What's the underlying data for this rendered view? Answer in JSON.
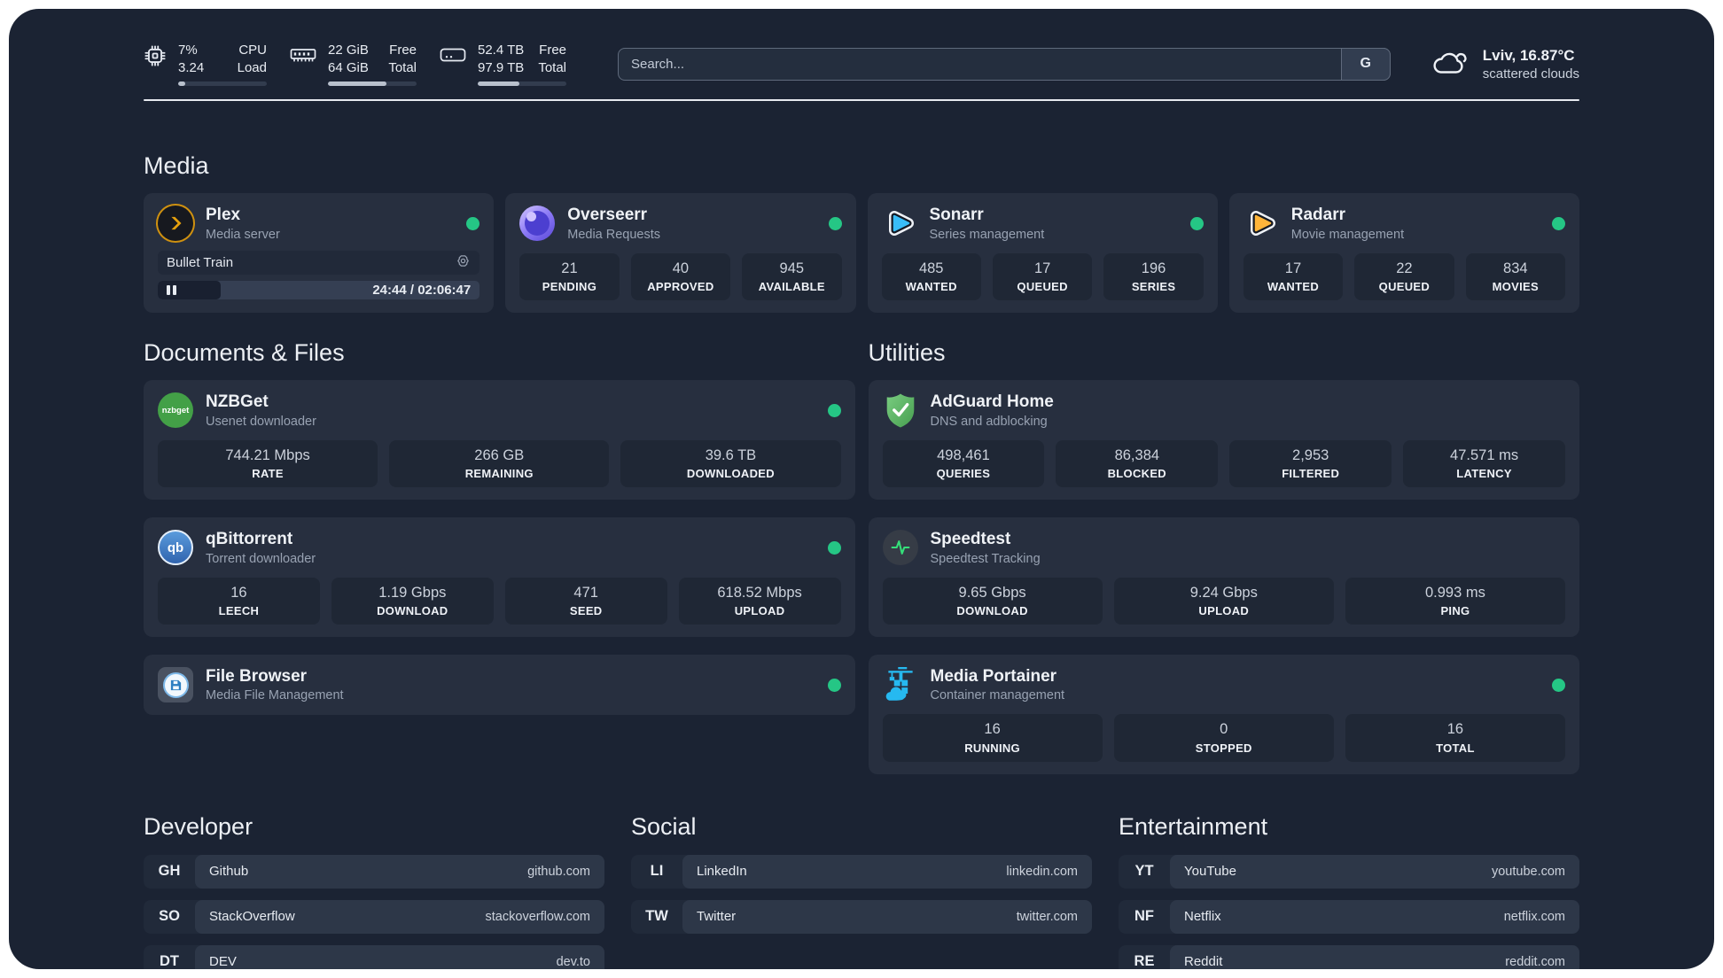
{
  "topbar": {
    "cpu": {
      "value_line1": "7%",
      "value_line2": "3.24",
      "label_line1": "CPU",
      "label_line2": "Load",
      "progress_pct": 8
    },
    "memory": {
      "value_line1": "22 GiB",
      "value_line2": "64 GiB",
      "label_line1": "Free",
      "label_line2": "Total",
      "progress_pct": 66
    },
    "storage": {
      "value_line1": "52.4 TB",
      "value_line2": "97.9 TB",
      "label_line1": "Free",
      "label_line2": "Total",
      "progress_pct": 47
    },
    "search": {
      "placeholder": "Search...",
      "engine_button": "G"
    },
    "weather": {
      "location": "Lviv, 16.87°C",
      "condition": "scattered clouds"
    }
  },
  "colors": {
    "status_online": "#25c685",
    "plex_accent": "#e5a00d",
    "sonarr_accent": "#39bdf8",
    "radarr_accent": "#ffb53a",
    "adguard_green": "#57b25f",
    "portainer_blue": "#26b9f0",
    "speedtest_pulse": "#35e07a"
  },
  "icons": {
    "cpu": "cpu-chip",
    "memory": "ram-stick",
    "storage": "hard-drive",
    "weather": "clouds",
    "plex": "plex-chevron",
    "overseerr": "overseerr-eye",
    "sonarr": "play-triangle-blue",
    "radarr": "play-triangle-orange",
    "nzbget": "nzbget-circle",
    "qbittorrent": "qb-circle",
    "filebrowser": "floppy-disk",
    "adguard": "shield-check",
    "speedtest": "pulse-line",
    "portainer": "container-crane",
    "stream_settings": "webcam",
    "stream_state": "pause"
  },
  "sections": {
    "media": {
      "title": "Media",
      "plex": {
        "name": "Plex",
        "subtitle": "Media server",
        "online": true,
        "stream": {
          "title": "Bullet Train",
          "time": "24:44 / 02:06:47",
          "progress_pct": 19.5
        }
      },
      "overseerr": {
        "name": "Overseerr",
        "subtitle": "Media Requests",
        "online": true,
        "stats": [
          {
            "value": "21",
            "label": "PENDING"
          },
          {
            "value": "40",
            "label": "APPROVED"
          },
          {
            "value": "945",
            "label": "AVAILABLE"
          }
        ]
      },
      "sonarr": {
        "name": "Sonarr",
        "subtitle": "Series management",
        "online": true,
        "stats": [
          {
            "value": "485",
            "label": "WANTED"
          },
          {
            "value": "17",
            "label": "QUEUED"
          },
          {
            "value": "196",
            "label": "SERIES"
          }
        ]
      },
      "radarr": {
        "name": "Radarr",
        "subtitle": "Movie management",
        "online": true,
        "stats": [
          {
            "value": "17",
            "label": "WANTED"
          },
          {
            "value": "22",
            "label": "QUEUED"
          },
          {
            "value": "834",
            "label": "MOVIES"
          }
        ]
      }
    },
    "documents": {
      "title": "Documents & Files",
      "nzbget": {
        "name": "NZBGet",
        "subtitle": "Usenet downloader",
        "online": true,
        "icon_text": "nzbget",
        "stats": [
          {
            "value": "744.21 Mbps",
            "label": "RATE"
          },
          {
            "value": "266 GB",
            "label": "REMAINING"
          },
          {
            "value": "39.6 TB",
            "label": "DOWNLOADED"
          }
        ]
      },
      "qbittorrent": {
        "name": "qBittorrent",
        "subtitle": "Torrent downloader",
        "online": true,
        "icon_text": "qb",
        "stats": [
          {
            "value": "16",
            "label": "LEECH"
          },
          {
            "value": "1.19 Gbps",
            "label": "DOWNLOAD"
          },
          {
            "value": "471",
            "label": "SEED"
          },
          {
            "value": "618.52 Mbps",
            "label": "UPLOAD"
          }
        ]
      },
      "filebrowser": {
        "name": "File Browser",
        "subtitle": "Media File Management",
        "online": true
      }
    },
    "utilities": {
      "title": "Utilities",
      "adguard": {
        "name": "AdGuard Home",
        "subtitle": "DNS and adblocking",
        "stats": [
          {
            "value": "498,461",
            "label": "QUERIES"
          },
          {
            "value": "86,384",
            "label": "BLOCKED"
          },
          {
            "value": "2,953",
            "label": "FILTERED"
          },
          {
            "value": "47.571 ms",
            "label": "LATENCY"
          }
        ]
      },
      "speedtest": {
        "name": "Speedtest",
        "subtitle": "Speedtest Tracking",
        "stats": [
          {
            "value": "9.65 Gbps",
            "label": "DOWNLOAD"
          },
          {
            "value": "9.24 Gbps",
            "label": "UPLOAD"
          },
          {
            "value": "0.993 ms",
            "label": "PING"
          }
        ]
      },
      "portainer": {
        "name": "Media Portainer",
        "subtitle": "Container management",
        "online": true,
        "stats": [
          {
            "value": "16",
            "label": "RUNNING"
          },
          {
            "value": "0",
            "label": "STOPPED"
          },
          {
            "value": "16",
            "label": "TOTAL"
          }
        ]
      }
    },
    "bookmarks": {
      "developer": {
        "title": "Developer",
        "links": [
          {
            "abbr": "GH",
            "name": "Github",
            "url": "github.com"
          },
          {
            "abbr": "SO",
            "name": "StackOverflow",
            "url": "stackoverflow.com"
          },
          {
            "abbr": "DT",
            "name": "DEV",
            "url": "dev.to"
          }
        ]
      },
      "social": {
        "title": "Social",
        "links": [
          {
            "abbr": "LI",
            "name": "LinkedIn",
            "url": "linkedin.com"
          },
          {
            "abbr": "TW",
            "name": "Twitter",
            "url": "twitter.com"
          }
        ]
      },
      "entertainment": {
        "title": "Entertainment",
        "links": [
          {
            "abbr": "YT",
            "name": "YouTube",
            "url": "youtube.com"
          },
          {
            "abbr": "NF",
            "name": "Netflix",
            "url": "netflix.com"
          },
          {
            "abbr": "RE",
            "name": "Reddit",
            "url": "reddit.com"
          }
        ]
      }
    }
  }
}
